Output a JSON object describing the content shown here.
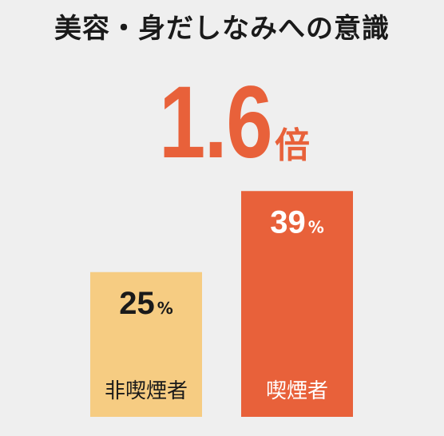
{
  "title": "美容・身だしなみへの意識",
  "headline": {
    "value": "1.6",
    "unit": "倍"
  },
  "chart_data": {
    "type": "bar",
    "categories": [
      "非喫煙者",
      "喫煙者"
    ],
    "values": [
      25,
      39
    ],
    "value_unit": "%",
    "value_labels": [
      "25",
      "39"
    ],
    "colors": [
      "#f6cc82",
      "#e8613a"
    ],
    "label_colors": [
      "#1a1a1a",
      "#ffffff"
    ],
    "ylim": [
      0,
      40
    ],
    "grid": false,
    "legend": "none"
  }
}
